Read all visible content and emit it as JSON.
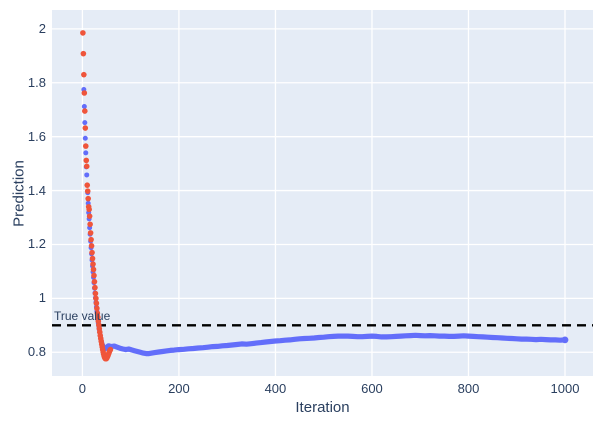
{
  "figure": {
    "background": "#ffffff",
    "plot_bgcolor": "#E5ECF6",
    "grid_color": "#ffffff",
    "text_color": "#2a3f5f"
  },
  "chart_data": {
    "type": "scatter",
    "xlabel": "Iteration",
    "ylabel": "Prediction",
    "x_range": [
      -63,
      1058
    ],
    "y_range": [
      0.712,
      2.07
    ],
    "x_ticks": [
      0,
      200,
      400,
      600,
      800,
      1000
    ],
    "x_tick_labels": [
      "0",
      "200",
      "400",
      "600",
      "800",
      "1000"
    ],
    "y_ticks": [
      2,
      1.8,
      1.6,
      1.4,
      1.2,
      1,
      0.8
    ],
    "y_tick_labels": [
      "2",
      "1.8",
      "1.6",
      "1.4",
      "1.2",
      "1",
      "0.8"
    ],
    "grid": true,
    "legend": "none",
    "true_value_line": {
      "label": "True value",
      "y": 0.9,
      "color": "#000000",
      "dash": [
        9,
        6
      ],
      "width": 2.3
    },
    "series": [
      {
        "name": "prediction-all-iterations",
        "color": "#636EFA",
        "marker_px": 5.0,
        "trail_width": 5.2,
        "points": [
          [
            3,
            1.775
          ],
          [
            4,
            1.712
          ],
          [
            5,
            1.652
          ],
          [
            6,
            1.594
          ],
          [
            7,
            1.54
          ],
          [
            8,
            1.488
          ],
          [
            9,
            1.458
          ],
          [
            10,
            1.42
          ],
          [
            11,
            1.392
          ],
          [
            12,
            1.353
          ],
          [
            13,
            1.318
          ],
          [
            14,
            1.295
          ],
          [
            15,
            1.262
          ],
          [
            16,
            1.238
          ],
          [
            17,
            1.212
          ],
          [
            18,
            1.188
          ],
          [
            19,
            1.165
          ],
          [
            20,
            1.142
          ],
          [
            21,
            1.12
          ],
          [
            22,
            1.098
          ],
          [
            23,
            1.078
          ],
          [
            24,
            1.058
          ],
          [
            25,
            1.038
          ],
          [
            26,
            1.02
          ],
          [
            27,
            1.002
          ],
          [
            28,
            0.985
          ],
          [
            29,
            0.968
          ],
          [
            30,
            0.952
          ],
          [
            31,
            0.937
          ],
          [
            32,
            0.922
          ],
          [
            33,
            0.908
          ],
          [
            34,
            0.896
          ],
          [
            35,
            0.884
          ],
          [
            36,
            0.873
          ],
          [
            37,
            0.862
          ],
          [
            38,
            0.852
          ],
          [
            39,
            0.844
          ],
          [
            40,
            0.836
          ],
          [
            41,
            0.83
          ],
          [
            42,
            0.826
          ],
          [
            43,
            0.822
          ],
          [
            44,
            0.818
          ],
          [
            45,
            0.816
          ],
          [
            46,
            0.814
          ],
          [
            47,
            0.813
          ],
          [
            48,
            0.814
          ],
          [
            49,
            0.815
          ],
          [
            50,
            0.817
          ],
          [
            51,
            0.819
          ],
          [
            52,
            0.821
          ],
          [
            53,
            0.823
          ]
        ],
        "trail": [
          [
            54,
            0.824
          ],
          [
            60,
            0.821
          ],
          [
            66,
            0.823
          ],
          [
            72,
            0.819
          ],
          [
            78,
            0.815
          ],
          [
            84,
            0.812
          ],
          [
            90,
            0.81
          ],
          [
            96,
            0.812
          ],
          [
            102,
            0.809
          ],
          [
            108,
            0.806
          ],
          [
            114,
            0.803
          ],
          [
            120,
            0.8
          ],
          [
            126,
            0.797
          ],
          [
            132,
            0.795
          ],
          [
            138,
            0.795
          ],
          [
            144,
            0.797
          ],
          [
            150,
            0.799
          ],
          [
            158,
            0.801
          ],
          [
            166,
            0.803
          ],
          [
            174,
            0.805
          ],
          [
            182,
            0.807
          ],
          [
            190,
            0.808
          ],
          [
            200,
            0.81
          ],
          [
            210,
            0.811
          ],
          [
            220,
            0.813
          ],
          [
            230,
            0.814
          ],
          [
            240,
            0.816
          ],
          [
            250,
            0.817
          ],
          [
            260,
            0.819
          ],
          [
            270,
            0.821
          ],
          [
            280,
            0.822
          ],
          [
            290,
            0.824
          ],
          [
            300,
            0.825
          ],
          [
            310,
            0.827
          ],
          [
            320,
            0.829
          ],
          [
            330,
            0.831
          ],
          [
            340,
            0.83
          ],
          [
            350,
            0.832
          ],
          [
            360,
            0.834
          ],
          [
            370,
            0.836
          ],
          [
            380,
            0.838
          ],
          [
            390,
            0.84
          ],
          [
            400,
            0.842
          ],
          [
            410,
            0.843
          ],
          [
            420,
            0.845
          ],
          [
            430,
            0.846
          ],
          [
            440,
            0.848
          ],
          [
            450,
            0.85
          ],
          [
            460,
            0.851
          ],
          [
            470,
            0.852
          ],
          [
            480,
            0.853
          ],
          [
            490,
            0.855
          ],
          [
            500,
            0.856
          ],
          [
            510,
            0.858
          ],
          [
            520,
            0.859
          ],
          [
            530,
            0.86
          ],
          [
            540,
            0.86
          ],
          [
            550,
            0.86
          ],
          [
            560,
            0.859
          ],
          [
            570,
            0.858
          ],
          [
            580,
            0.858
          ],
          [
            590,
            0.859
          ],
          [
            600,
            0.86
          ],
          [
            610,
            0.859
          ],
          [
            620,
            0.857
          ],
          [
            630,
            0.857
          ],
          [
            640,
            0.858
          ],
          [
            650,
            0.859
          ],
          [
            660,
            0.86
          ],
          [
            670,
            0.861
          ],
          [
            680,
            0.862
          ],
          [
            690,
            0.863
          ],
          [
            700,
            0.862
          ],
          [
            710,
            0.861
          ],
          [
            720,
            0.862
          ],
          [
            730,
            0.861
          ],
          [
            740,
            0.86
          ],
          [
            750,
            0.86
          ],
          [
            760,
            0.859
          ],
          [
            770,
            0.859
          ],
          [
            780,
            0.86
          ],
          [
            790,
            0.861
          ],
          [
            800,
            0.86
          ],
          [
            810,
            0.859
          ],
          [
            820,
            0.858
          ],
          [
            830,
            0.857
          ],
          [
            840,
            0.856
          ],
          [
            850,
            0.855
          ],
          [
            860,
            0.854
          ],
          [
            870,
            0.853
          ],
          [
            880,
            0.852
          ],
          [
            890,
            0.851
          ],
          [
            900,
            0.85
          ],
          [
            910,
            0.849
          ],
          [
            920,
            0.849
          ],
          [
            930,
            0.848
          ],
          [
            940,
            0.847
          ],
          [
            950,
            0.848
          ],
          [
            960,
            0.847
          ],
          [
            970,
            0.846
          ],
          [
            980,
            0.846
          ],
          [
            990,
            0.845
          ],
          [
            1000,
            0.846
          ]
        ]
      },
      {
        "name": "prediction-early-iterations",
        "color": "#EF553B",
        "marker_px": 5.6,
        "points": [
          [
            1,
            1.985
          ],
          [
            2,
            1.908
          ],
          [
            3,
            1.83
          ],
          [
            4,
            1.762
          ],
          [
            5,
            1.695
          ],
          [
            6,
            1.632
          ],
          [
            7,
            1.565
          ],
          [
            8,
            1.512
          ],
          [
            9,
            1.49
          ],
          [
            10,
            1.42
          ],
          [
            11,
            1.398
          ],
          [
            12,
            1.37
          ],
          [
            13,
            1.34
          ],
          [
            14,
            1.33
          ],
          [
            15,
            1.305
          ],
          [
            16,
            1.275
          ],
          [
            17,
            1.243
          ],
          [
            18,
            1.218
          ],
          [
            19,
            1.195
          ],
          [
            20,
            1.17
          ],
          [
            21,
            1.148
          ],
          [
            22,
            1.127
          ],
          [
            23,
            1.107
          ],
          [
            24,
            1.085
          ],
          [
            25,
            1.062
          ],
          [
            26,
            1.04
          ],
          [
            27,
            1.018
          ],
          [
            28,
            1.0
          ],
          [
            29,
            0.982
          ],
          [
            30,
            0.963
          ],
          [
            31,
            0.945
          ],
          [
            32,
            0.93
          ],
          [
            33,
            0.915
          ],
          [
            34,
            0.901
          ],
          [
            35,
            0.888
          ],
          [
            36,
            0.875
          ],
          [
            37,
            0.862
          ],
          [
            38,
            0.851
          ],
          [
            39,
            0.841
          ],
          [
            40,
            0.83
          ],
          [
            41,
            0.82
          ],
          [
            42,
            0.81
          ],
          [
            43,
            0.801
          ],
          [
            44,
            0.793
          ],
          [
            45,
            0.786
          ],
          [
            46,
            0.781
          ],
          [
            47,
            0.778
          ],
          [
            48,
            0.776
          ],
          [
            49,
            0.776
          ],
          [
            50,
            0.777
          ],
          [
            51,
            0.78
          ],
          [
            52,
            0.784
          ],
          [
            53,
            0.788
          ],
          [
            54,
            0.793
          ],
          [
            55,
            0.798
          ],
          [
            56,
            0.803
          ],
          [
            57,
            0.807
          ],
          [
            58,
            0.81
          ]
        ]
      }
    ]
  }
}
